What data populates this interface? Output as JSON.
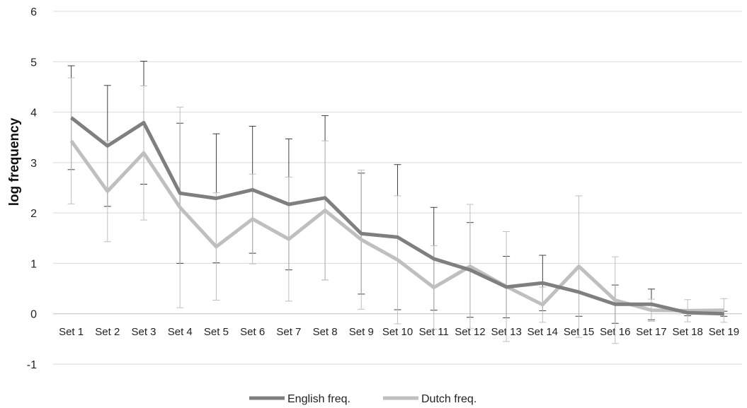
{
  "chart_data": {
    "type": "line",
    "title": "",
    "xlabel": "",
    "ylabel": "log frequency",
    "ylim": [
      -1,
      6
    ],
    "yticks": [
      -1,
      0,
      1,
      2,
      3,
      4,
      5,
      6
    ],
    "grid": true,
    "legend_position": "bottom",
    "categories": [
      "Set 1",
      "Set 2",
      "Set 3",
      "Set 4",
      "Set 5",
      "Set 6",
      "Set 7",
      "Set 8",
      "Set 9",
      "Set 10",
      "Set 11",
      "Set 12",
      "Set 13",
      "Set 14",
      "Set 15",
      "Set 16",
      "Set 17",
      "Set 18",
      "Set 19"
    ],
    "series": [
      {
        "name": "English freq.",
        "color": "#7f7f7f",
        "values": [
          3.89,
          3.33,
          3.79,
          2.39,
          2.29,
          2.46,
          2.17,
          2.3,
          1.59,
          1.52,
          1.09,
          0.87,
          0.53,
          0.61,
          0.43,
          0.19,
          0.19,
          0.02,
          0.0
        ],
        "err_low": [
          2.86,
          2.13,
          2.57,
          1.0,
          1.01,
          1.2,
          0.87,
          0.67,
          0.39,
          0.08,
          0.07,
          -0.07,
          -0.08,
          0.06,
          -0.05,
          -0.19,
          -0.12,
          -0.04,
          -0.05
        ],
        "err_high": [
          4.92,
          4.53,
          5.01,
          3.78,
          3.57,
          3.72,
          3.47,
          3.93,
          2.79,
          2.96,
          2.11,
          1.81,
          1.14,
          1.16,
          0.91,
          0.57,
          0.49,
          0.08,
          0.05
        ]
      },
      {
        "name": "Dutch freq.",
        "color": "#bfbfbf",
        "values": [
          3.43,
          2.43,
          3.19,
          2.11,
          1.33,
          1.88,
          1.48,
          2.05,
          1.47,
          1.07,
          0.52,
          0.94,
          0.54,
          0.18,
          0.94,
          0.27,
          0.07,
          0.06,
          0.07
        ],
        "err_low": [
          2.18,
          1.43,
          1.86,
          0.12,
          0.27,
          0.99,
          0.25,
          0.67,
          0.09,
          -0.2,
          -0.31,
          -0.29,
          -0.55,
          -0.17,
          -0.47,
          -0.59,
          -0.15,
          -0.16,
          -0.17
        ],
        "err_high": [
          4.68,
          3.43,
          4.52,
          4.1,
          2.4,
          2.77,
          2.71,
          3.43,
          2.85,
          2.34,
          1.35,
          2.17,
          1.63,
          0.53,
          2.34,
          1.13,
          0.29,
          0.28,
          0.3
        ]
      }
    ]
  }
}
